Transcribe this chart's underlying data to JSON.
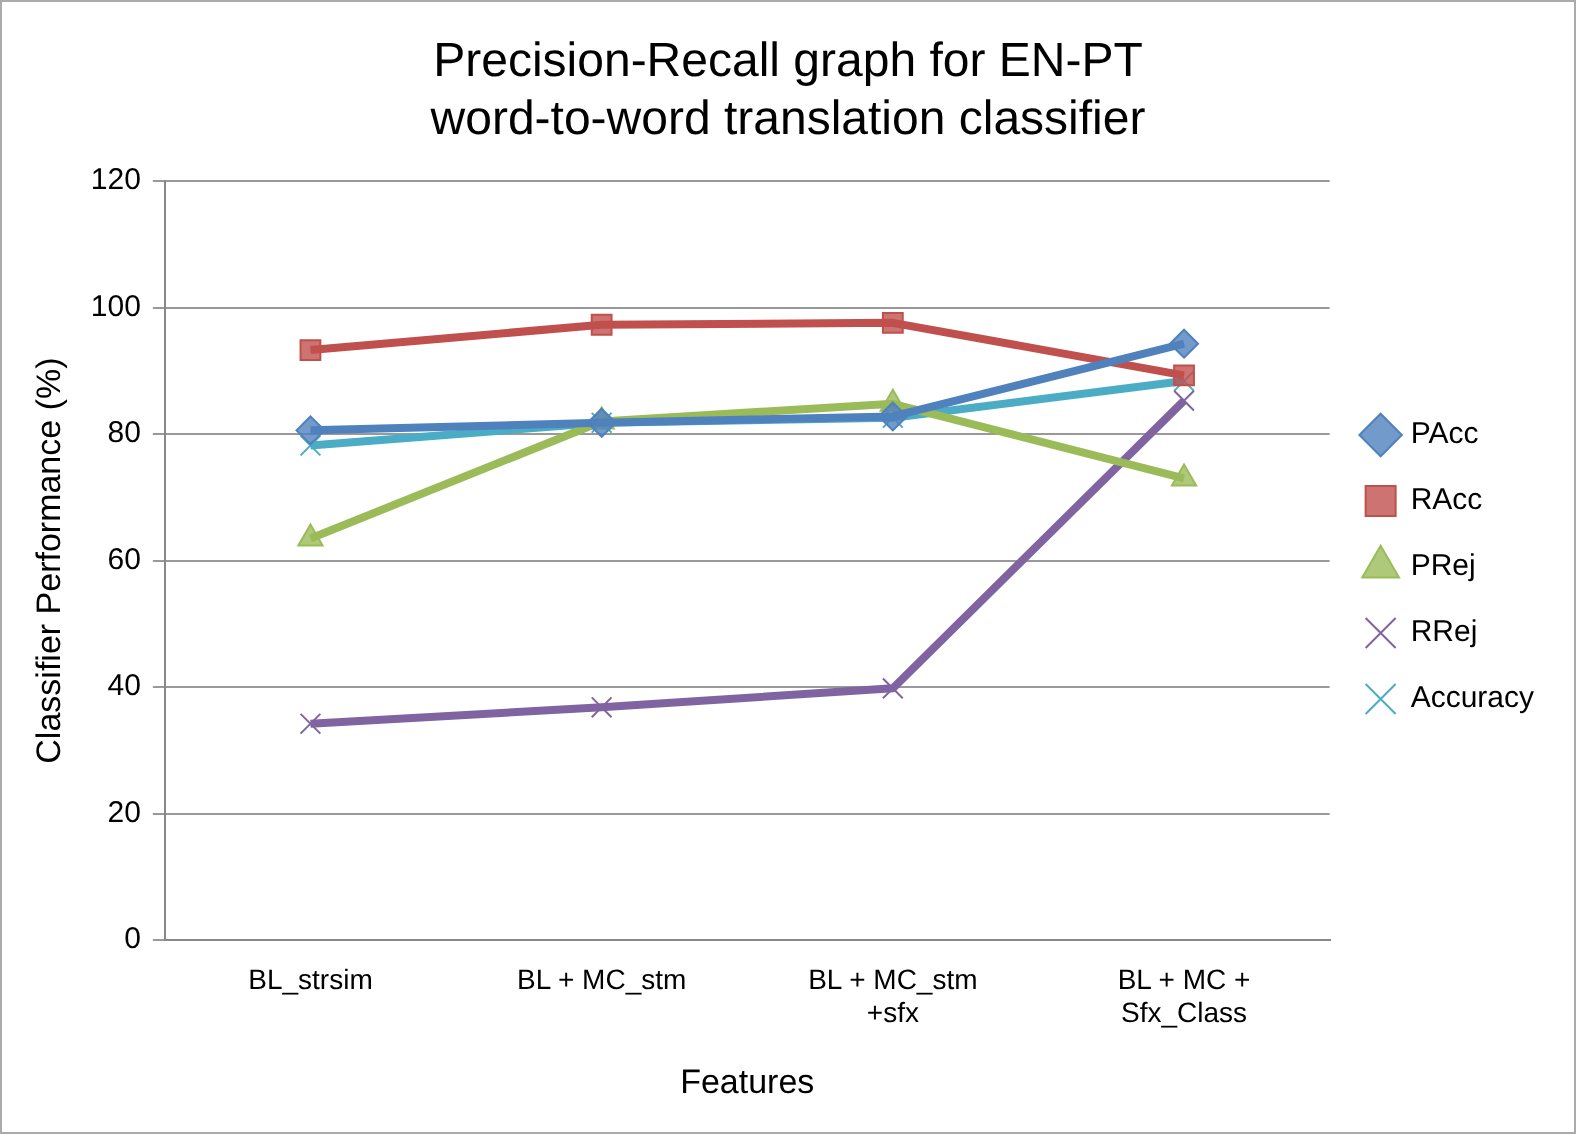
{
  "chart_data": {
    "type": "line",
    "title": "Precision-Recall graph for EN-PT\nword-to-word translation classifier",
    "xlabel": "Features",
    "ylabel": "Classifier Performance (%)",
    "categories": [
      "BL_strsim",
      "BL + MC_stm",
      "BL + MC_stm\n+sfx",
      "BL + MC +\nSfx_Class"
    ],
    "series": [
      {
        "name": "PAcc",
        "color": "#4f81bd",
        "marker": "diamond",
        "values": [
          80.6,
          81.8,
          82.8,
          94.3
        ]
      },
      {
        "name": "RAcc",
        "color": "#c0504d",
        "marker": "square",
        "values": [
          93.3,
          97.3,
          97.6,
          89.3
        ]
      },
      {
        "name": "PRej",
        "color": "#9bbb59",
        "marker": "triangle",
        "values": [
          63.5,
          82,
          84.8,
          73
        ]
      },
      {
        "name": "RRej",
        "color": "#8064a2",
        "marker": "cross",
        "values": [
          34.2,
          36.8,
          39.8,
          85.3
        ]
      },
      {
        "name": "Accuracy",
        "color": "#4bacc6",
        "marker": "cross",
        "values": [
          78.2,
          81.8,
          82.6,
          88.4
        ]
      }
    ],
    "ylim": [
      0,
      120
    ],
    "yticks": [
      0,
      20,
      40,
      60,
      80,
      100,
      120
    ],
    "grid": "y",
    "legend": "right"
  }
}
